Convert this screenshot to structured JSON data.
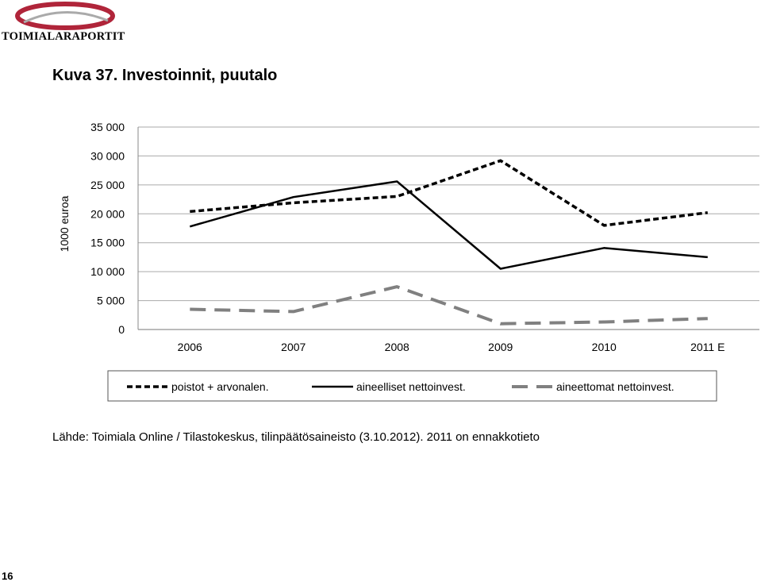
{
  "header": {
    "logo_text": "TOIMIALARAPORTIT"
  },
  "figure": {
    "title": "Kuva 37. Investoinnit, puutalo",
    "source": "Lähde: Toimiala Online / Tilastokeskus, tilinpäätösaineisto (3.10.2012). 2011 on ennakkotieto"
  },
  "page": {
    "number": "16"
  },
  "colors": {
    "dark": "#000000",
    "grey": "#808080",
    "grid": "#aaaaaa",
    "logo_red": "#b0253a"
  },
  "chart_data": {
    "type": "line",
    "title": "",
    "xlabel": "",
    "ylabel": "1000 euroa",
    "categories": [
      "2006",
      "2007",
      "2008",
      "2009",
      "2010",
      "2011 E"
    ],
    "ylim": [
      0,
      35000
    ],
    "yticks": [
      0,
      5000,
      10000,
      15000,
      20000,
      25000,
      30000,
      35000
    ],
    "ytick_labels": [
      "0",
      "5 000",
      "10 000",
      "15 000",
      "20 000",
      "25 000",
      "30 000",
      "35 000"
    ],
    "grid": true,
    "legend_position": "bottom",
    "series": [
      {
        "name": "poistot + arvonalen.",
        "style": "dotted",
        "color": "#000000",
        "values": [
          20400,
          21900,
          23000,
          29200,
          18000,
          20200
        ]
      },
      {
        "name": "aineelliset nettoinvest.",
        "style": "solid",
        "color": "#000000",
        "values": [
          17800,
          22900,
          25600,
          10500,
          14100,
          12500
        ]
      },
      {
        "name": "aineettomat nettoinvest.",
        "style": "dashed",
        "color": "#808080",
        "values": [
          3500,
          3100,
          7400,
          1000,
          1300,
          1900
        ]
      }
    ]
  }
}
